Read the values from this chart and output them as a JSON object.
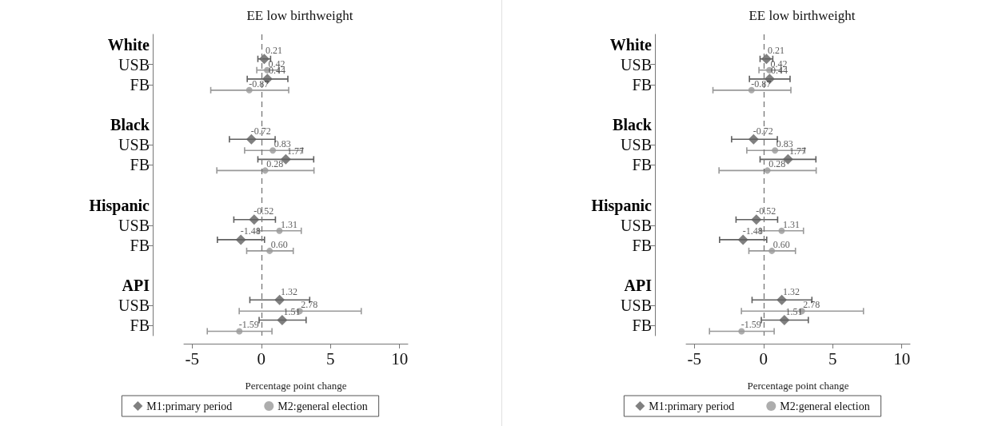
{
  "chart_data": [
    {
      "type": "scatter",
      "orientation": "horizontal",
      "title": "EE low birthweight",
      "xlabel": "Percentage point change",
      "categories": [
        "White",
        "USB",
        "FB",
        null,
        "Black",
        "USB",
        "FB",
        null,
        "Hispanic",
        "USB",
        "FB",
        null,
        "API",
        "USB",
        "FB"
      ],
      "xlim": [
        -5.6,
        10.6
      ],
      "xticks": [
        -5,
        0,
        5,
        10
      ],
      "grid": false,
      "legend": "bottom",
      "ref_lines": [
        {
          "axis": "x",
          "value": 0,
          "line_style": "dashed",
          "color": "#777777"
        }
      ],
      "series": [
        {
          "name": "M1:primary period",
          "color": "#606060",
          "marker": "diamond",
          "values": [
            null,
            0.21,
            0.44,
            null,
            null,
            -0.72,
            1.77,
            null,
            null,
            -0.52,
            -1.48,
            null,
            null,
            1.32,
            1.51
          ],
          "value_labels": [
            null,
            "0.21",
            "0.44",
            null,
            null,
            "-0.72",
            "1.77",
            null,
            null,
            "-0.52",
            "-1.48",
            null,
            null,
            "1.32",
            "1.51"
          ],
          "errors": [
            null,
            [
              -0.25,
              0.67
            ],
            [
              -1.02,
              1.92
            ],
            null,
            null,
            [
              -2.31,
              1.0
            ],
            [
              -0.25,
              3.79
            ],
            null,
            null,
            [
              -1.99,
              1.02
            ],
            [
              -3.18,
              0.23
            ],
            null,
            null,
            [
              -0.83,
              3.5
            ],
            [
              -0.16,
              3.24
            ]
          ]
        },
        {
          "name": "M2:general election",
          "color": "#999999",
          "marker": "circle",
          "values": [
            null,
            0.42,
            -0.87,
            null,
            null,
            0.83,
            0.28,
            null,
            null,
            1.31,
            0.6,
            null,
            null,
            2.78,
            -1.59
          ],
          "value_labels": [
            null,
            "0.42",
            "-0.87",
            null,
            null,
            "0.83",
            "0.28",
            null,
            null,
            "1.31",
            "0.60",
            null,
            null,
            "2.78",
            "-1.59"
          ],
          "errors": [
            null,
            [
              -0.33,
              1.25
            ],
            [
              -3.66,
              1.98
            ],
            null,
            null,
            [
              -1.21,
              2.98
            ],
            [
              -3.22,
              3.81
            ],
            null,
            null,
            [
              -0.23,
              2.89
            ],
            [
              -1.06,
              2.31
            ],
            null,
            null,
            [
              -1.6,
              7.23
            ],
            [
              -3.91,
              0.77
            ]
          ]
        }
      ]
    },
    {
      "type": "scatter",
      "orientation": "horizontal",
      "title": "EE low birthweight",
      "xlabel": "Percentage point change",
      "categories": [
        "White",
        "USB",
        "FB",
        null,
        "Black",
        "USB",
        "FB",
        null,
        "Hispanic",
        "USB",
        "FB",
        null,
        "API",
        "USB",
        "FB"
      ],
      "xlim": [
        -5.6,
        10.6
      ],
      "xticks": [
        -5,
        0,
        5,
        10
      ],
      "grid": false,
      "legend": "bottom",
      "ref_lines": [
        {
          "axis": "x",
          "value": 0,
          "line_style": "dashed",
          "color": "#777777"
        }
      ],
      "series": [
        {
          "name": "M1:primary period",
          "color": "#606060",
          "marker": "diamond",
          "values": [
            null,
            0.21,
            0.44,
            null,
            null,
            -0.72,
            1.77,
            null,
            null,
            -0.52,
            -1.48,
            null,
            null,
            1.32,
            1.51
          ],
          "value_labels": [
            null,
            "0.21",
            "0.44",
            null,
            null,
            "-0.72",
            "1.77",
            null,
            null,
            "-0.52",
            "-1.48",
            null,
            null,
            "1.32",
            "1.51"
          ],
          "errors": [
            null,
            [
              -0.25,
              0.67
            ],
            [
              -1.02,
              1.92
            ],
            null,
            null,
            [
              -2.31,
              1.0
            ],
            [
              -0.25,
              3.79
            ],
            null,
            null,
            [
              -1.99,
              1.02
            ],
            [
              -3.18,
              0.23
            ],
            null,
            null,
            [
              -0.83,
              3.5
            ],
            [
              -0.16,
              3.24
            ]
          ]
        },
        {
          "name": "M2:general election",
          "color": "#999999",
          "marker": "circle",
          "values": [
            null,
            0.42,
            -0.87,
            null,
            null,
            0.83,
            0.28,
            null,
            null,
            1.31,
            0.6,
            null,
            null,
            2.78,
            -1.59
          ],
          "value_labels": [
            null,
            "0.42",
            "-0.87",
            null,
            null,
            "0.83",
            "0.28",
            null,
            null,
            "1.31",
            "0.60",
            null,
            null,
            "2.78",
            "-1.59"
          ],
          "errors": [
            null,
            [
              -0.33,
              1.25
            ],
            [
              -3.66,
              1.98
            ],
            null,
            null,
            [
              -1.21,
              2.98
            ],
            [
              -3.22,
              3.81
            ],
            null,
            null,
            [
              -0.23,
              2.89
            ],
            [
              -1.06,
              2.31
            ],
            null,
            null,
            [
              -1.6,
              7.23
            ],
            [
              -3.91,
              0.77
            ]
          ]
        }
      ]
    }
  ]
}
